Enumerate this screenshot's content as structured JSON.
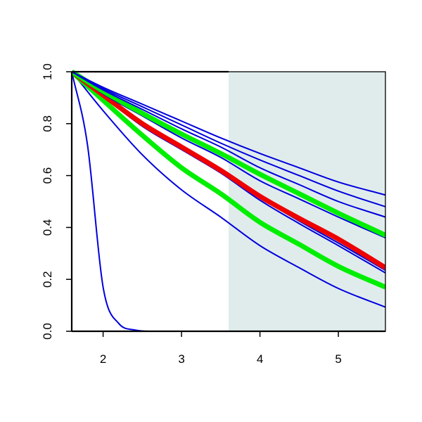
{
  "chart_data": {
    "type": "line",
    "title": "",
    "xlabel": "",
    "ylabel": "",
    "xlim": [
      1.6,
      5.6
    ],
    "ylim": [
      0,
      1
    ],
    "x_ticks": [
      "2",
      "3",
      "4",
      "5"
    ],
    "y_ticks": [
      "0.0",
      "0.2",
      "0.4",
      "0.6",
      "0.8",
      "1.0"
    ],
    "grid": false,
    "legend": "none",
    "shaded_region": {
      "x_from": 3.6,
      "x_to": 5.6,
      "color": "#e0ecec"
    },
    "series": [
      {
        "color": "#0000dd",
        "width": "thin",
        "x": [
          1.6,
          1.8,
          2.0,
          2.2,
          2.4,
          2.6,
          3.0,
          4.0,
          5.0,
          5.6
        ],
        "y": [
          1.0,
          0.72,
          0.17,
          0.03,
          0.005,
          0.0,
          0.0,
          0.0,
          0.0,
          0.0
        ]
      },
      {
        "color": "#0000dd",
        "width": "thin",
        "x": [
          1.6,
          2.0,
          2.5,
          3.0,
          3.5,
          4.0,
          4.5,
          5.0,
          5.6
        ],
        "y": [
          1.0,
          0.85,
          0.68,
          0.545,
          0.44,
          0.33,
          0.245,
          0.165,
          0.093
        ]
      },
      {
        "color": "#00ee00",
        "width": "thick",
        "x": [
          1.6,
          2.0,
          2.5,
          3.0,
          3.5,
          4.0,
          4.5,
          5.0,
          5.6
        ],
        "y": [
          1.0,
          0.89,
          0.755,
          0.63,
          0.53,
          0.42,
          0.335,
          0.25,
          0.17
        ]
      },
      {
        "color": "#0000dd",
        "width": "thin",
        "x": [
          1.6,
          2.0,
          2.5,
          3.0,
          3.5,
          4.0,
          4.5,
          5.0,
          5.6
        ],
        "y": [
          1.0,
          0.905,
          0.79,
          0.7,
          0.61,
          0.505,
          0.415,
          0.33,
          0.225
        ]
      },
      {
        "color": "#0000dd",
        "width": "thin",
        "x": [
          1.6,
          2.0,
          2.5,
          3.0,
          3.5,
          4.0,
          4.5,
          5.0,
          5.6
        ],
        "y": [
          1.0,
          0.905,
          0.795,
          0.705,
          0.615,
          0.515,
          0.425,
          0.34,
          0.235
        ]
      },
      {
        "color": "#ee0000",
        "width": "thick",
        "x": [
          1.6,
          2.0,
          2.5,
          3.0,
          3.5,
          4.0,
          4.5,
          5.0,
          5.6
        ],
        "y": [
          1.0,
          0.91,
          0.8,
          0.71,
          0.62,
          0.52,
          0.435,
          0.355,
          0.245
        ]
      },
      {
        "color": "#0000dd",
        "width": "thin",
        "x": [
          1.6,
          2.0,
          2.5,
          3.0,
          3.5,
          4.0,
          4.5,
          5.0,
          5.6
        ],
        "y": [
          1.0,
          0.915,
          0.83,
          0.745,
          0.67,
          0.58,
          0.51,
          0.44,
          0.36
        ]
      },
      {
        "color": "#00ee00",
        "width": "thick",
        "x": [
          1.6,
          2.0,
          2.5,
          3.0,
          3.5,
          4.0,
          4.5,
          5.0,
          5.6
        ],
        "y": [
          1.0,
          0.925,
          0.84,
          0.76,
          0.685,
          0.605,
          0.53,
          0.455,
          0.37
        ]
      },
      {
        "color": "#0000dd",
        "width": "thin",
        "x": [
          1.6,
          2.0,
          2.5,
          3.0,
          3.5,
          4.0,
          4.5,
          5.0,
          5.6
        ],
        "y": [
          1.0,
          0.93,
          0.855,
          0.78,
          0.71,
          0.63,
          0.565,
          0.5,
          0.44
        ]
      },
      {
        "color": "#0000dd",
        "width": "thin",
        "x": [
          1.6,
          2.0,
          2.5,
          3.0,
          3.5,
          4.0,
          4.5,
          5.0,
          5.6
        ],
        "y": [
          1.0,
          0.935,
          0.865,
          0.795,
          0.725,
          0.66,
          0.6,
          0.54,
          0.48
        ]
      },
      {
        "color": "#0000dd",
        "width": "thin",
        "x": [
          1.6,
          2.0,
          2.5,
          3.0,
          3.5,
          4.0,
          4.5,
          5.0,
          5.6
        ],
        "y": [
          1.0,
          0.94,
          0.875,
          0.81,
          0.745,
          0.685,
          0.63,
          0.575,
          0.525
        ]
      }
    ]
  }
}
